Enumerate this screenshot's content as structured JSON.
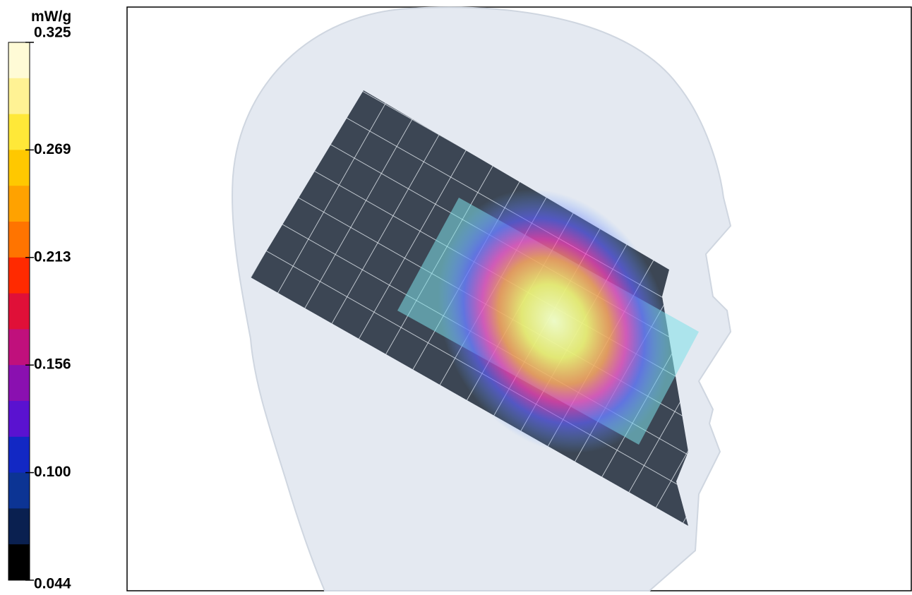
{
  "colorbar": {
    "unit": "mW/g",
    "labels": [
      "0.325",
      "0.269",
      "0.213",
      "0.156",
      "0.100",
      "0.044"
    ],
    "colors": [
      "#fffbd6",
      "#fff294",
      "#ffe838",
      "#ffc800",
      "#ffa200",
      "#ff7400",
      "#ff2a00",
      "#e01038",
      "#c0107c",
      "#8a10b0",
      "#5a12d0",
      "#1228c4",
      "#0c3494",
      "#0a2050",
      "#000000"
    ]
  }
}
